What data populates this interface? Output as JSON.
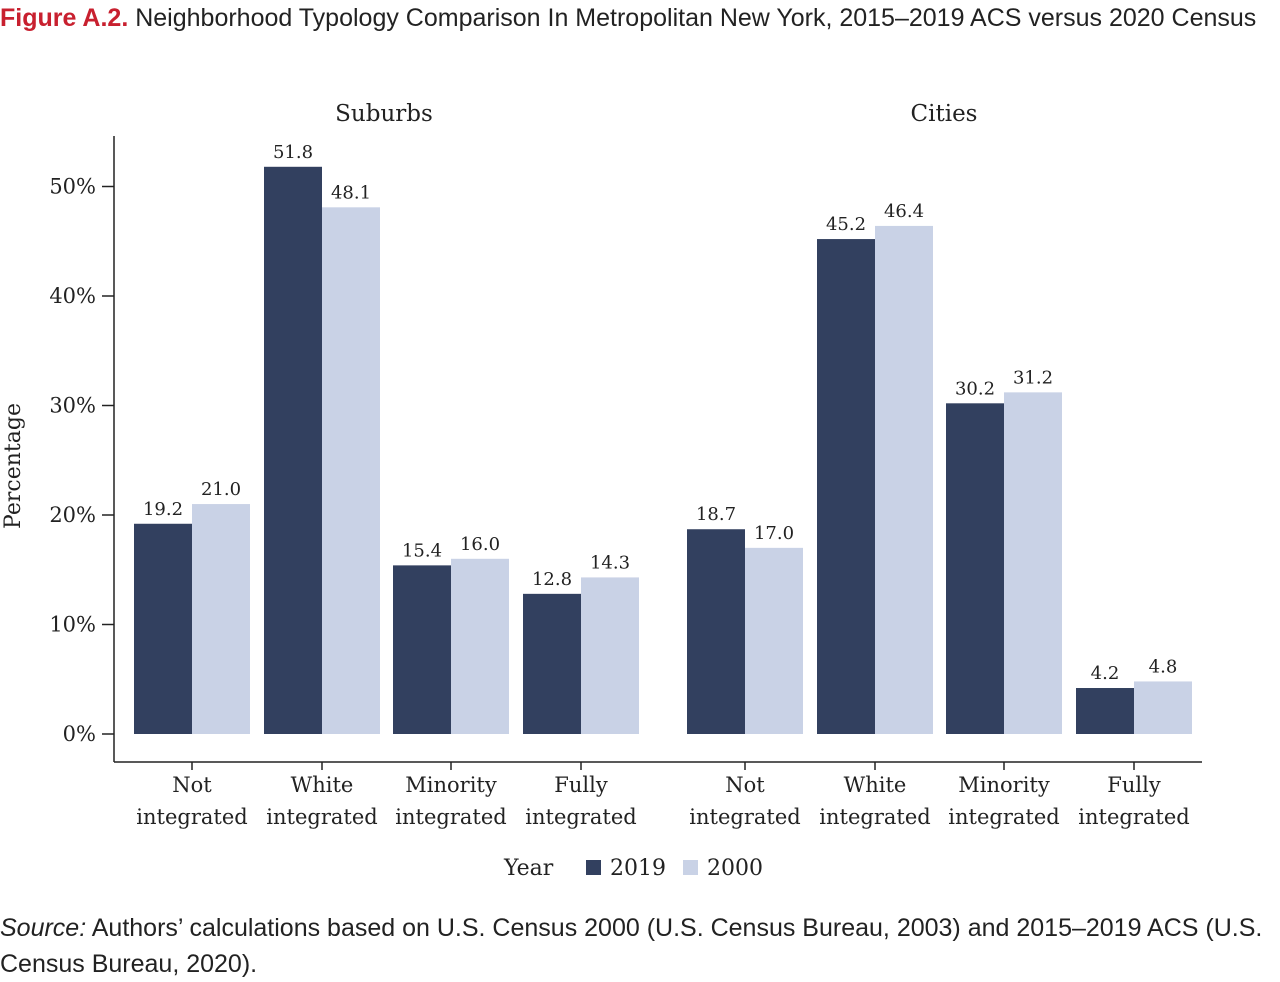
{
  "figure": {
    "label": "Figure A.2.",
    "title": "Neighborhood Typology Comparison In Metropolitan New York, 2015–2019 ACS versus 2020 Census"
  },
  "source": {
    "label": "Source:",
    "text": "Authors’ calculations based on U.S. Census 2000 (U.S. Census Bureau, 2003) and 2015–2019 ACS (U.S. Census Bureau, 2020)."
  },
  "colors": {
    "series_2019": "#32405f",
    "series_2000": "#c9d2e6",
    "axis": "#222222"
  },
  "chart_data": {
    "type": "bar",
    "ylabel": "Percentage",
    "ylim": [
      0,
      55
    ],
    "yticks": [
      0,
      10,
      20,
      30,
      40,
      50
    ],
    "ytick_labels": [
      "0%",
      "10%",
      "20%",
      "30%",
      "40%",
      "50%"
    ],
    "legend": {
      "title": "Year",
      "position": "bottom"
    },
    "series": [
      {
        "name": "2019",
        "color": "#32405f"
      },
      {
        "name": "2000",
        "color": "#c9d2e6"
      }
    ],
    "panels": [
      {
        "title": "Suburbs",
        "categories": [
          [
            "Not",
            "integrated"
          ],
          [
            "White",
            "integrated"
          ],
          [
            "Minority",
            "integrated"
          ],
          [
            "Fully",
            "integrated"
          ]
        ],
        "values": {
          "2019": [
            19.2,
            51.8,
            15.4,
            12.8
          ],
          "2000": [
            21.0,
            48.1,
            16.0,
            14.3
          ]
        }
      },
      {
        "title": "Cities",
        "categories": [
          [
            "Not",
            "integrated"
          ],
          [
            "White",
            "integrated"
          ],
          [
            "Minority",
            "integrated"
          ],
          [
            "Fully",
            "integrated"
          ]
        ],
        "values": {
          "2019": [
            18.7,
            45.2,
            30.2,
            4.2
          ],
          "2000": [
            17.0,
            46.4,
            31.2,
            4.8
          ]
        }
      }
    ]
  }
}
